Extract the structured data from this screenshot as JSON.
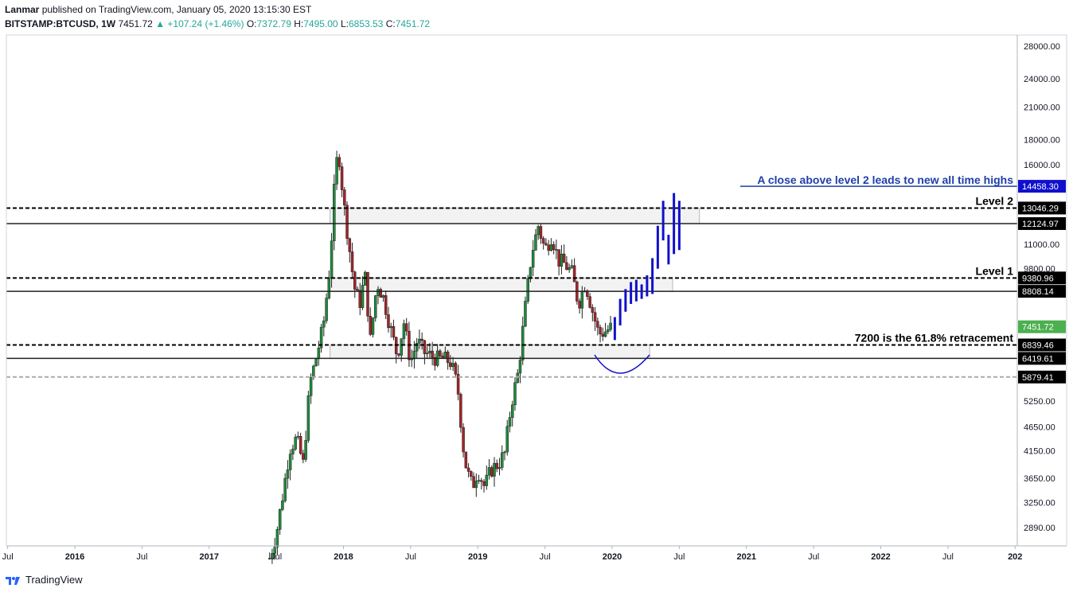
{
  "header": {
    "author": "Lanmar",
    "published_text": "published on TradingView.com, January 05, 2020 13:15:30 EST",
    "symbol": "BITSTAMP:BTCUSD, 1W",
    "last": "7451.72",
    "change": "▲ +107.24 (+1.46%)",
    "o_label": "O:",
    "o_value": "7372.79",
    "h_label": "H:",
    "h_value": "7495.00",
    "l_label": "L:",
    "l_value": "6853.53",
    "c_label": "C:",
    "c_value": "7451.72"
  },
  "footer": {
    "brand": "TradingView"
  },
  "colors": {
    "up": "#26a69a",
    "down": "#ef5350",
    "candle_up": "#1e8a3c",
    "candle_down": "#a3242a",
    "projection": "#1010cc",
    "annotation_blue": "#1f3fa8",
    "current_price_bg": "#4caf50"
  },
  "chart_data": {
    "type": "candlestick",
    "scale": "log",
    "ylim": [
      2650,
      30000
    ],
    "y_ticks": [
      "28000.00",
      "24000.00",
      "21000.00",
      "18000.00",
      "16000.00",
      "11000.00",
      "9800.00",
      "5250.00",
      "4650.00",
      "4150.00",
      "3650.00",
      "3250.00",
      "2890.00"
    ],
    "y_tick_values": [
      28000,
      24000,
      21000,
      18000,
      16000,
      11000,
      9800,
      5250,
      4650,
      4150,
      3650,
      3250,
      2890
    ],
    "x_ticks": [
      "Jul",
      "2016",
      "Jul",
      "2017",
      "Jul",
      "2018",
      "Jul",
      "2019",
      "Jul",
      "2020",
      "Jul",
      "2021",
      "Jul",
      "2022",
      "Jul",
      "202"
    ],
    "x_tick_dates": [
      2015.5,
      2016.0,
      2016.5,
      2017.0,
      2017.5,
      2018.0,
      2018.5,
      2019.0,
      2019.5,
      2020.0,
      2020.5,
      2021.0,
      2021.5,
      2022.0,
      2022.5,
      2023.0
    ],
    "horizontal_levels": [
      {
        "price": 14458.3,
        "label": "14458.30",
        "style": "blue-solid"
      },
      {
        "price": 13046.29,
        "label": "13046.29",
        "style": "dashed"
      },
      {
        "price": 12124.97,
        "label": "12124.97",
        "style": "solid"
      },
      {
        "price": 9380.96,
        "label": "9380.96",
        "style": "dashed"
      },
      {
        "price": 8808.14,
        "label": "8808.14",
        "style": "solid"
      },
      {
        "price": 7451.72,
        "label": "7451.72",
        "style": "current"
      },
      {
        "price": 6839.46,
        "label": "6839.46",
        "style": "dashed"
      },
      {
        "price": 6419.61,
        "label": "6419.61",
        "style": "solid"
      },
      {
        "price": 5879.41,
        "label": "5879.41",
        "style": "grey-dashed"
      }
    ],
    "annotations": [
      {
        "text": "A close above level 2 leads to new all time highs",
        "price": 14458.3,
        "color": "blue"
      },
      {
        "text": "Level 2",
        "price": 13046.29
      },
      {
        "text": "Level 1",
        "price": 9380.96
      },
      {
        "text": "7200 is the 61.8% retracement",
        "price": 6839.46
      }
    ],
    "zones": [
      {
        "from": 2017.9,
        "to": 2020.65,
        "low": 12124.97,
        "high": 13046.29
      },
      {
        "from": 2017.9,
        "to": 2020.45,
        "low": 8808.14,
        "high": 9380.96
      },
      {
        "from": 2017.9,
        "to": 2020.28,
        "low": 6419.61,
        "high": 6839.46
      }
    ],
    "series": [
      {
        "name": "BTCUSD weekly close (approx.)",
        "x": [
          2017.45,
          2017.5,
          2017.55,
          2017.6,
          2017.65,
          2017.7,
          2017.75,
          2017.8,
          2017.85,
          2017.9,
          2017.93,
          2017.96,
          2018.0,
          2018.04,
          2018.08,
          2018.12,
          2018.16,
          2018.2,
          2018.25,
          2018.3,
          2018.35,
          2018.4,
          2018.45,
          2018.5,
          2018.55,
          2018.6,
          2018.65,
          2018.7,
          2018.75,
          2018.8,
          2018.85,
          2018.9,
          2018.93,
          2018.96,
          2019.0,
          2019.05,
          2019.1,
          2019.15,
          2019.2,
          2019.25,
          2019.3,
          2019.35,
          2019.4,
          2019.45,
          2019.5,
          2019.55,
          2019.6,
          2019.65,
          2019.7,
          2019.75,
          2019.8,
          2019.85,
          2019.9,
          2019.95,
          2020.0
        ],
        "close": [
          2500,
          2800,
          3400,
          4200,
          4400,
          3900,
          5700,
          6500,
          7500,
          10000,
          14000,
          17500,
          13500,
          11000,
          9000,
          8300,
          9500,
          7000,
          9200,
          8500,
          7400,
          6500,
          7600,
          6300,
          7000,
          6600,
          6500,
          6400,
          6400,
          6300,
          5600,
          4000,
          3700,
          3500,
          3800,
          3500,
          3800,
          3900,
          4100,
          5200,
          6000,
          8000,
          10500,
          12000,
          10700,
          11500,
          10200,
          10000,
          9600,
          8300,
          9200,
          8100,
          7200,
          7300,
          7451.72
        ]
      }
    ],
    "projection": {
      "x": [
        2020.02,
        2020.06,
        2020.1,
        2020.14,
        2020.18,
        2020.22,
        2020.26,
        2020.3,
        2020.34,
        2020.38,
        2020.42,
        2020.46,
        2020.5
      ],
      "high": [
        7800,
        8500,
        8900,
        9200,
        9300,
        9100,
        9500,
        10300,
        12000,
        13500,
        11500,
        14000,
        13500
      ],
      "low": [
        7000,
        7500,
        8000,
        8300,
        8400,
        8500,
        8600,
        8700,
        9800,
        11200,
        10000,
        10500,
        10700
      ]
    }
  }
}
